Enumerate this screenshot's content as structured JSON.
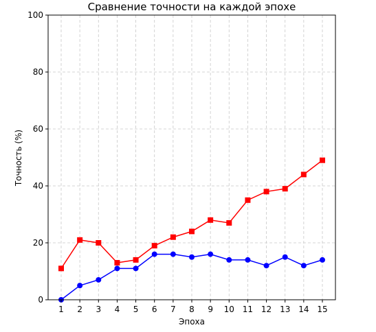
{
  "chart_data": {
    "type": "line",
    "title": "Сравнение точности на каждой эпохе",
    "xlabel": "Эпоха",
    "ylabel": "Точность (%)",
    "x": [
      1,
      2,
      3,
      4,
      5,
      6,
      7,
      8,
      9,
      10,
      11,
      12,
      13,
      14,
      15
    ],
    "xlim": [
      0.3,
      15.7
    ],
    "ylim": [
      0,
      100
    ],
    "yticks": [
      0,
      20,
      40,
      60,
      80,
      100
    ],
    "grid": true,
    "series": [
      {
        "color": "#0000ff",
        "marker": "circle",
        "values": [
          0,
          5,
          7,
          11,
          11,
          16,
          16,
          15,
          16,
          14,
          14,
          12,
          15,
          12,
          14
        ]
      },
      {
        "color": "#ff0000",
        "marker": "square",
        "values": [
          11,
          21,
          20,
          13,
          14,
          19,
          22,
          24,
          28,
          27,
          35,
          38,
          39,
          44,
          49
        ]
      }
    ]
  }
}
